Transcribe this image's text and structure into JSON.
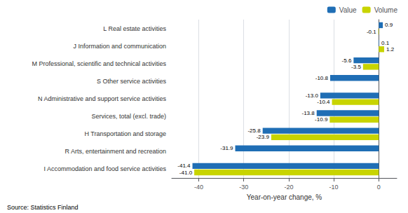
{
  "chart_data": {
    "type": "bar",
    "orientation": "horizontal",
    "categories": [
      "I Accommodation and food service activities",
      "R Arts, entertainment and recreation",
      "H Transportation and storage",
      "Services, total (excl. trade)",
      "N Administrative and support service activities",
      "S Other service activities",
      "M Professional, scientific and technical activities",
      "J Information and communication",
      "L Real estate activities"
    ],
    "series": [
      {
        "name": "Value",
        "color": "#1F6EB5",
        "values": [
          -41.4,
          -31.9,
          -25.8,
          -13.8,
          -13.0,
          -10.8,
          -5.6,
          0.1,
          0.9
        ],
        "value_labels": [
          "-41.4",
          "-31.9",
          "-25.8",
          "-13.8",
          "-13.0",
          "-10.8",
          "-5.6",
          "0.1",
          "0.9"
        ]
      },
      {
        "name": "Volume",
        "color": "#C8D400",
        "values": [
          -41.0,
          null,
          -23.9,
          -10.9,
          -10.4,
          null,
          -3.5,
          1.2,
          -0.1
        ],
        "value_labels": [
          "-41.0",
          null,
          "-23.9",
          "-10.9",
          "-10.4",
          null,
          "-3.5",
          "1.2",
          "-0.1"
        ]
      }
    ],
    "xlabel": "Year-on-year change, %",
    "xlim": [
      -46,
      4
    ],
    "xticks": [
      -40,
      -30,
      -20,
      -10,
      0
    ],
    "grid": true,
    "legend": "upper right",
    "data_labels": true,
    "annotation": "Source: Statistics Finland"
  }
}
